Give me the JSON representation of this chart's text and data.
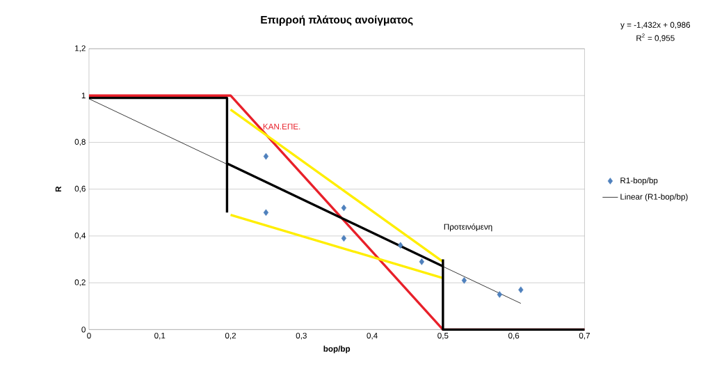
{
  "chart_data": {
    "type": "line",
    "title": "Επιρροή πλάτους ανοίγματος",
    "xlabel": "bop/bp",
    "ylabel": "R",
    "xlim": [
      0,
      0.7
    ],
    "ylim": [
      0,
      1.2
    ],
    "xticks": [
      0,
      {
        "value": 0.1,
        "label": "0,1"
      },
      {
        "value": 0.2,
        "label": "0,2"
      },
      {
        "value": 0.3,
        "label": "0,3"
      },
      {
        "value": 0.4,
        "label": "0,4"
      },
      {
        "value": 0.5,
        "label": "0,5"
      },
      {
        "value": 0.6,
        "label": "0,6"
      },
      {
        "value": 0.7,
        "label": "0,7"
      }
    ],
    "yticks": [
      0,
      {
        "value": 0.2,
        "label": "0,2"
      },
      {
        "value": 0.4,
        "label": "0,4"
      },
      {
        "value": 0.6,
        "label": "0,6"
      },
      {
        "value": 0.8,
        "label": "0,8"
      },
      1,
      {
        "value": 1.2,
        "label": "1,2"
      }
    ],
    "grid": "y",
    "legend": "right",
    "series": [
      {
        "color": "#e8202a",
        "x": [
          0,
          0.2,
          0.5,
          0.7
        ],
        "values": [
          1,
          1,
          0,
          0
        ]
      },
      {
        "color": "#ffee00",
        "x": [
          0.2,
          0.5
        ],
        "values": [
          0.94,
          0.29
        ]
      },
      {
        "color": "#ffee00",
        "x": [
          0.2,
          0.5
        ],
        "values": [
          0.49,
          0.22
        ]
      },
      {
        "color": "#000000",
        "x": [
          0,
          0.195,
          0.195
        ],
        "values": [
          0.99,
          0.99,
          0.5
        ]
      },
      {
        "color": "#000000",
        "x": [
          0.195,
          0.5
        ],
        "values": [
          0.71,
          0.27
        ]
      },
      {
        "color": "#000000",
        "x": [
          0.5,
          0.5,
          0.7
        ],
        "values": [
          0.3,
          0,
          0
        ]
      },
      {
        "type": "scatter",
        "name": "R1-bop/bp",
        "color": "#4f81bd",
        "marker": "diamond",
        "x": [
          0.25,
          0.25,
          0.36,
          0.36,
          0.44,
          0.47,
          0.53,
          0.58,
          0.61
        ],
        "values": [
          0.74,
          0.5,
          0.52,
          0.39,
          0.36,
          0.29,
          0.21,
          0.15,
          0.17
        ]
      },
      {
        "name": "Linear (R1-bop/bp)",
        "color": "#000000",
        "x": [
          0,
          0.61
        ],
        "values": [
          0.986,
          0.112
        ]
      }
    ],
    "annotations": [
      "ΚΑΝ.ΕΠΕ.",
      "Προτεινόμενη",
      "y = -1,432x + 0,986",
      "R$^{2}$ = 0,955"
    ]
  }
}
